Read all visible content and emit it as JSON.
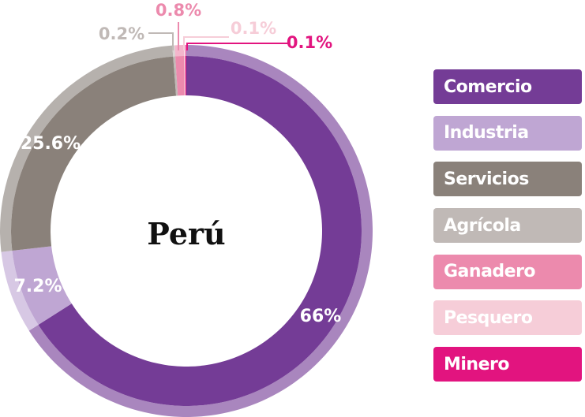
{
  "chart_data": {
    "type": "pie",
    "title": "Perú",
    "categories": [
      "Comercio",
      "Industria",
      "Servicios",
      "Agrícola",
      "Ganadero",
      "Pesquero",
      "Minero"
    ],
    "values": [
      66,
      7.2,
      25.6,
      0.2,
      0.8,
      0.1,
      0.1
    ],
    "labels": [
      "66%",
      "7.2%",
      "25.6%",
      "0.2%",
      "0.8%",
      "0.1%",
      "0.1%"
    ],
    "colors": [
      "#743C96",
      "#BFA6D3",
      "#8A817A",
      "#C0B9B6",
      "#EC8AAD",
      "#F6CDD8",
      "#E2147F"
    ],
    "label_colors": [
      "#ffffff",
      "#ffffff",
      "#ffffff",
      "#C0B9B6",
      "#EC8AAD",
      "#F6CDD8",
      "#E2147F"
    ],
    "legend_position": "right"
  }
}
